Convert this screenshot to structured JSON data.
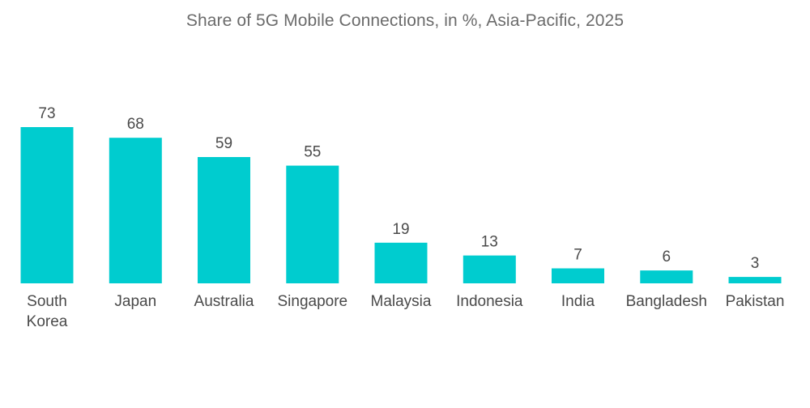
{
  "chart_data": {
    "type": "bar",
    "title": "Share of 5G Mobile Connections, in %, Asia-Pacific, 2025",
    "xlabel": "",
    "ylabel": "",
    "ylim": [
      0,
      73
    ],
    "grid": false,
    "legend": "none",
    "categories": [
      "South Korea",
      "Japan",
      "Australia",
      "Singapore",
      "Malaysia",
      "Indonesia",
      "India",
      "Bangladesh",
      "Pakistan"
    ],
    "category_lines": [
      [
        "South",
        "Korea"
      ],
      [
        "Japan"
      ],
      [
        "Australia"
      ],
      [
        "Singapore"
      ],
      [
        "Malaysia"
      ],
      [
        "Indonesia"
      ],
      [
        "India"
      ],
      [
        "Bangladesh"
      ],
      [
        "Pakistan"
      ]
    ],
    "values": [
      73,
      68,
      59,
      55,
      19,
      13,
      7,
      6,
      3
    ],
    "bar_color": "#00cccf"
  }
}
